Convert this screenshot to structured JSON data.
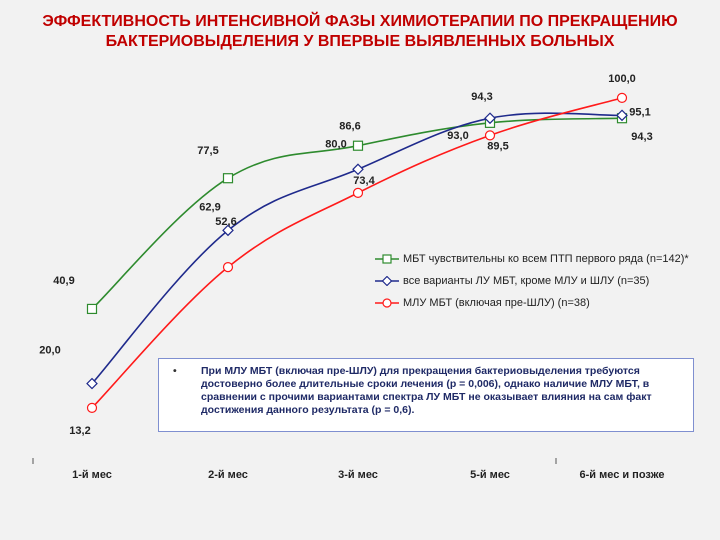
{
  "title": "ЭФФЕКТИВНОСТЬ ИНТЕНСИВНОЙ ФАЗЫ ХИМИОТЕРАПИИ ПО ПРЕКРАЩЕНИЮ БАКТЕРИОВЫДЕЛЕНИЯ У ВПЕРВЫЕ ВЫЯВЛЕННЫХ БОЛЬНЫХ",
  "note": {
    "bullet": "•",
    "text": "При МЛУ МБТ (включая пре-ШЛУ) для прекращения бактериовыделения требуются достоверно более длительные сроки лечения (р = 0,006), однако наличие МЛУ МБТ, в сравнении с прочими вариантами спектра ЛУ МБТ не оказывает влияния на сам факт достижения данного результата (р = 0,6)."
  },
  "chart_data": {
    "type": "line",
    "categories": [
      "1-й мес",
      "2-й мес",
      "3-й мес",
      "5-й мес",
      "6-й мес и позже"
    ],
    "series": [
      {
        "name": "МБТ чувствительны ко всем ПТП первого ряда (n=142)*",
        "color": "#2e8b2e",
        "marker": "square",
        "values": [
          40.9,
          77.5,
          86.6,
          93.0,
          94.3
        ],
        "labels": [
          "40,9",
          "77,5",
          "86,6",
          "93,0",
          "94,3"
        ]
      },
      {
        "name": "все варианты ЛУ МБТ, кроме МЛУ и ШЛУ (n=35)",
        "color": "#1f2a8c",
        "marker": "diamond",
        "values": [
          20.0,
          62.9,
          80.0,
          94.3,
          95.1
        ],
        "labels": [
          "20,0",
          "62,9",
          "80,0",
          "94,3",
          "95,1"
        ]
      },
      {
        "name": "МЛУ МБТ (включая пре-ШЛУ) (n=38)",
        "color": "#ff1a1a",
        "marker": "circle",
        "values": [
          13.2,
          52.6,
          73.4,
          89.5,
          100.0
        ],
        "labels": [
          "13,2",
          "52,6",
          "73,4",
          "89,5",
          "100,0"
        ]
      }
    ],
    "ylim": [
      0,
      105
    ],
    "grid": false,
    "legend_position": "right"
  }
}
